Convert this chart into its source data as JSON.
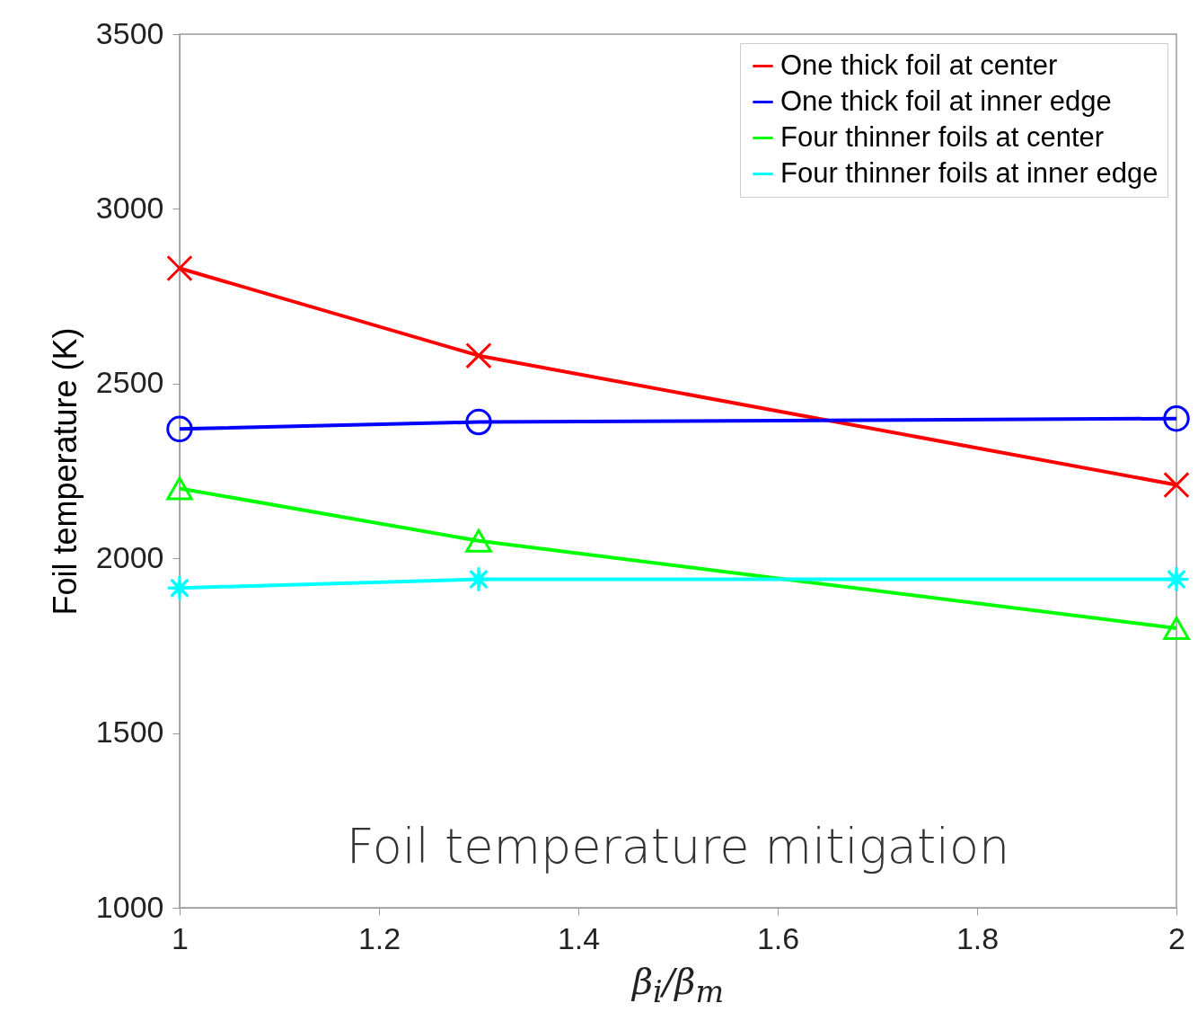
{
  "chart_data": {
    "type": "line",
    "xlabel": "β$_{i}$/β$_{m}$",
    "ylabel": "Foil temperature (K)",
    "x": [
      1,
      1.3,
      2
    ],
    "series": [
      {
        "name": "One thick foil at center",
        "color": "#ff0000",
        "marker": "cross",
        "values": [
          2830,
          2580,
          2210
        ]
      },
      {
        "name": "One thick foil at inner edge",
        "color": "#0000ff",
        "marker": "circle",
        "values": [
          2370,
          2390,
          2400
        ]
      },
      {
        "name": "Four thinner foils at center",
        "color": "#00ff00",
        "marker": "triangle",
        "values": [
          2200,
          2050,
          1800
        ]
      },
      {
        "name": "Four thinner foils at inner edge",
        "color": "#00ffff",
        "marker": "star",
        "values": [
          1915,
          1940,
          1940
        ]
      }
    ],
    "xlim": [
      1,
      2
    ],
    "xticks": [
      1,
      1.2,
      1.4,
      1.6,
      1.8,
      2
    ],
    "ylim": [
      1000,
      3500
    ],
    "yticks": [
      1000,
      1500,
      2000,
      2500,
      3000,
      3500
    ],
    "grid": false,
    "legend": "top right",
    "line_style": "solid",
    "annotations": [
      "Foil temperature mitigation"
    ]
  }
}
